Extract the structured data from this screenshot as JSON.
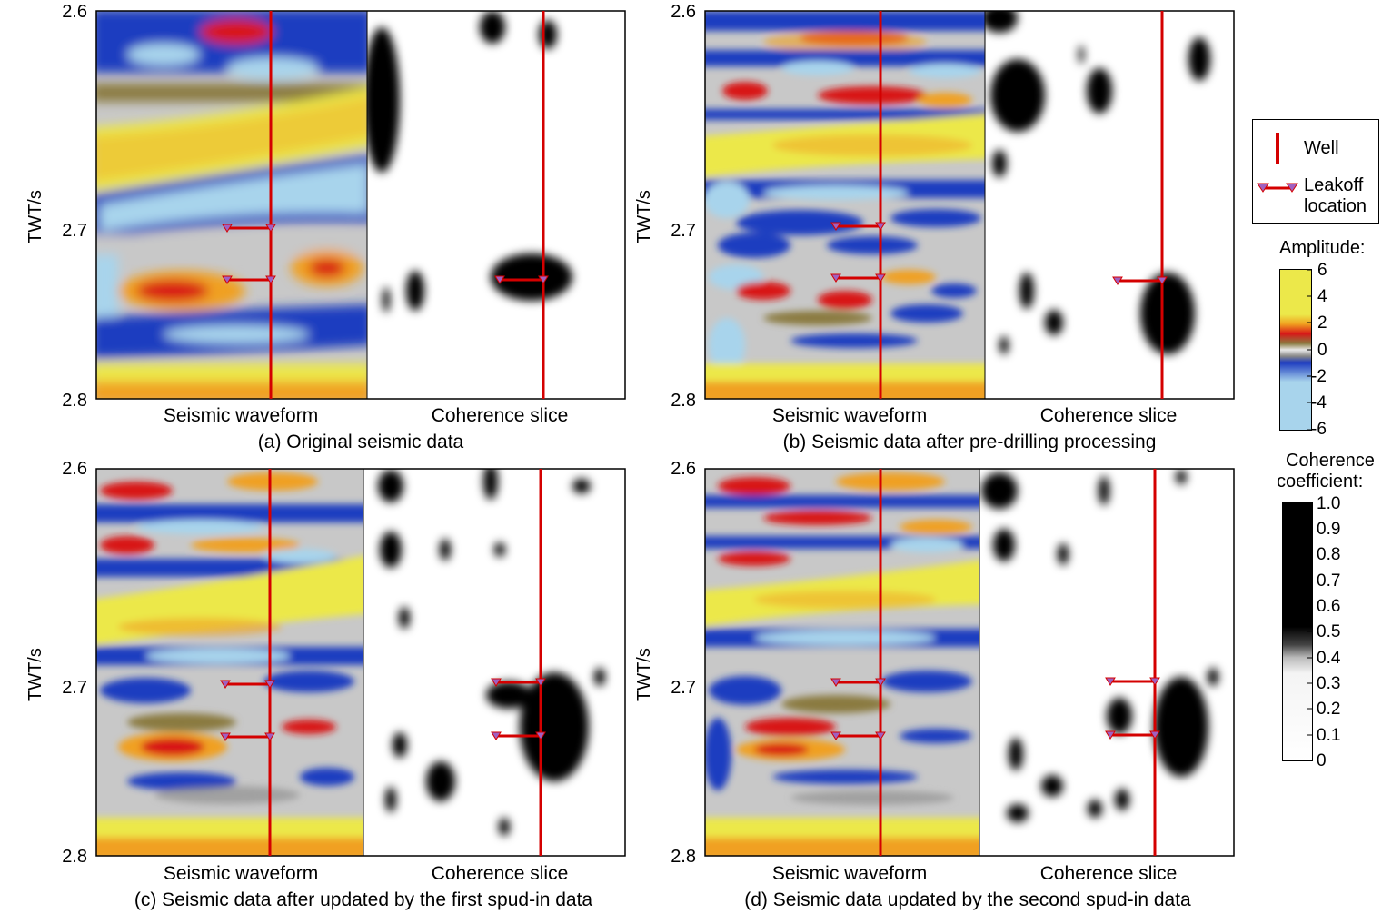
{
  "axis": {
    "ylabel": "TWT/s",
    "ticks": [
      "2.6",
      "2.7",
      "2.8"
    ]
  },
  "sub_labels": {
    "waveform": "Seismic waveform",
    "coherence": "Coherence slice"
  },
  "panels": [
    {
      "id": "a",
      "caption": "(a) Original seismic data"
    },
    {
      "id": "b",
      "caption": "(b) Seismic data after pre-drilling processing"
    },
    {
      "id": "c",
      "caption": "(c) Seismic data after updated by the first spud-in data"
    },
    {
      "id": "d",
      "caption": "(d) Seismic data updated by the second spud-in data"
    }
  ],
  "legend": {
    "well": "Well",
    "leakoff_line1": "Leakoff",
    "leakoff_line2": "location"
  },
  "amplitude_bar": {
    "title": "Amplitude:",
    "ticks": [
      "6",
      "4",
      "2",
      "0",
      "-2",
      "-4",
      "-6"
    ]
  },
  "coherence_bar": {
    "title_line1": "Coherence",
    "title_line2": "coefficient:",
    "ticks": [
      "1.0",
      "0.9",
      "0.8",
      "0.7",
      "0.6",
      "0.5",
      "0.4",
      "0.3",
      "0.2",
      "0.1",
      "0"
    ]
  },
  "colors": {
    "well": "#d40000",
    "leakoff_marker": "#a060c0",
    "yellow": "#ece84a",
    "orange": "#f0a020",
    "red": "#d81818",
    "blue": "#1e3cc0",
    "light_blue": "#a8d4ec",
    "gray": "#c8c8c8"
  }
}
